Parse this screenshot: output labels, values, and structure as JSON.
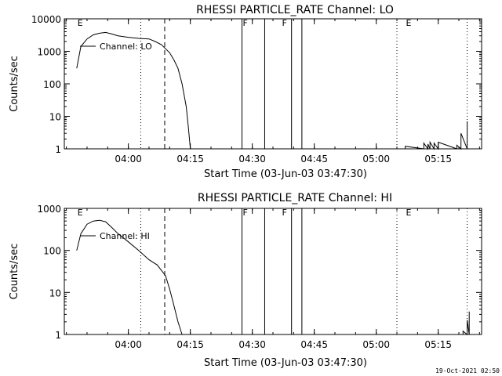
{
  "footer_timestamp": "19-Oct-2021 02:50",
  "chart_data": [
    {
      "type": "line",
      "title": "RHESSI PARTICLE_RATE Channel: LO",
      "xlabel": "Start Time (03-Jun-03 03:47:30)",
      "ylabel": "Counts/sec",
      "y_scale": "log",
      "ylim": [
        1,
        10000
      ],
      "xlim_minutes": [
        -1,
        40
      ],
      "x_ticks": [
        "04:00",
        "04:15",
        "04:30",
        "04:45",
        "05:00",
        "05:15"
      ],
      "y_ticks": [
        "1",
        "10",
        "100",
        "1000",
        "10000"
      ],
      "legend": {
        "label": "Channel: LO",
        "placement": "top-left"
      },
      "flags": [
        {
          "label": "E",
          "x": "03:47:30"
        },
        {
          "label": "F",
          "x": "04:27:30"
        },
        {
          "label": "F",
          "x": "04:37:00"
        },
        {
          "label": "E",
          "x": "05:07:00"
        }
      ],
      "series": [
        {
          "name": "Channel: LO",
          "points": [
            [
              "03:47:30",
              300
            ],
            [
              "03:48:30",
              1400
            ],
            [
              "03:50:00",
              2400
            ],
            [
              "03:51:30",
              3200
            ],
            [
              "03:53:00",
              3600
            ],
            [
              "03:54:30",
              3800
            ],
            [
              "03:56:00",
              3400
            ],
            [
              "03:57:30",
              3000
            ],
            [
              "04:00:00",
              2700
            ],
            [
              "04:02:30",
              2500
            ],
            [
              "04:05:00",
              2400
            ],
            [
              "04:06:30",
              2000
            ],
            [
              "04:08:00",
              1600
            ],
            [
              "04:09:00",
              1200
            ],
            [
              "04:10:00",
              900
            ],
            [
              "04:11:00",
              550
            ],
            [
              "04:12:00",
              300
            ],
            [
              "04:13:00",
              100
            ],
            [
              "04:14:00",
              20
            ],
            [
              "04:14:30",
              5
            ],
            [
              "04:15:00",
              1
            ]
          ]
        }
      ],
      "late_bursts": [
        [
          "05:07:00",
          1.2
        ],
        [
          "05:11:30",
          1.5
        ],
        [
          "05:12:30",
          1.4
        ],
        [
          "05:13:00",
          1.6
        ],
        [
          "05:14:00",
          1.5
        ],
        [
          "05:15:00",
          1.6
        ],
        [
          "05:19:30",
          1.3
        ],
        [
          "05:20:30",
          3
        ],
        [
          "05:22:00",
          7
        ]
      ]
    },
    {
      "type": "line",
      "title": "RHESSI PARTICLE_RATE Channel: HI",
      "xlabel": "Start Time (03-Jun-03 03:47:30)",
      "ylabel": "Counts/sec",
      "y_scale": "log",
      "ylim": [
        1,
        1000
      ],
      "x_ticks": [
        "04:00",
        "04:15",
        "04:30",
        "04:45",
        "05:00",
        "05:15"
      ],
      "y_ticks": [
        "1",
        "10",
        "100",
        "1000"
      ],
      "legend": {
        "label": "Channel: HI",
        "placement": "top-left"
      },
      "flags": [
        {
          "label": "E",
          "x": "03:47:30"
        },
        {
          "label": "F",
          "x": "04:27:30"
        },
        {
          "label": "F",
          "x": "04:37:00"
        },
        {
          "label": "E",
          "x": "05:07:00"
        }
      ],
      "series": [
        {
          "name": "Channel: HI",
          "points": [
            [
              "03:47:30",
              100
            ],
            [
              "03:48:30",
              250
            ],
            [
              "03:50:00",
              420
            ],
            [
              "03:51:30",
              500
            ],
            [
              "03:53:00",
              520
            ],
            [
              "03:54:30",
              480
            ],
            [
              "03:56:00",
              350
            ],
            [
              "03:57:30",
              250
            ],
            [
              "04:00:00",
              160
            ],
            [
              "04:02:30",
              100
            ],
            [
              "04:05:00",
              60
            ],
            [
              "04:07:00",
              45
            ],
            [
              "04:09:00",
              25
            ],
            [
              "04:10:00",
              12
            ],
            [
              "04:11:00",
              5
            ],
            [
              "04:12:00",
              2
            ],
            [
              "04:13:00",
              1
            ]
          ]
        }
      ],
      "late_bursts": [
        [
          "05:21:00",
          1.2
        ],
        [
          "05:22:00",
          2.2
        ],
        [
          "05:22:30",
          3.5
        ]
      ]
    }
  ]
}
